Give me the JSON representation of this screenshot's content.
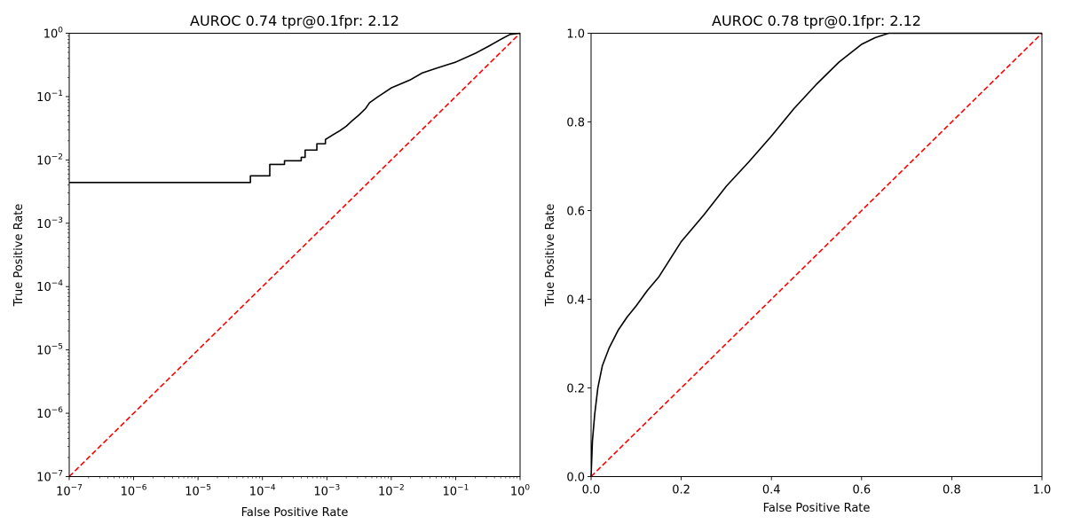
{
  "chart_data": [
    {
      "type": "line",
      "title": "AUROC 0.74 tpr@0.1fpr: 2.12",
      "xlabel": "False Positive Rate",
      "ylabel": "True Positive Rate",
      "xscale": "log",
      "yscale": "log",
      "xlim": [
        1e-07,
        1
      ],
      "ylim": [
        1e-07,
        1
      ],
      "grid": false,
      "legend": "none",
      "x_ticks": [
        {
          "base": "10",
          "exp": "−7"
        },
        {
          "base": "10",
          "exp": "−6"
        },
        {
          "base": "10",
          "exp": "−5"
        },
        {
          "base": "10",
          "exp": "−4"
        },
        {
          "base": "10",
          "exp": "−3"
        },
        {
          "base": "10",
          "exp": "−2"
        },
        {
          "base": "10",
          "exp": "−1"
        },
        {
          "base": "10",
          "exp": "0"
        }
      ],
      "y_ticks": [
        {
          "base": "10",
          "exp": "−7"
        },
        {
          "base": "10",
          "exp": "−6"
        },
        {
          "base": "10",
          "exp": "−5"
        },
        {
          "base": "10",
          "exp": "−4"
        },
        {
          "base": "10",
          "exp": "−3"
        },
        {
          "base": "10",
          "exp": "−2"
        },
        {
          "base": "10",
          "exp": "−1"
        },
        {
          "base": "10",
          "exp": "0"
        }
      ],
      "series": [
        {
          "style": "solid",
          "color": "#000000",
          "x": [
            1e-07,
            6.5e-05,
            6.5e-05,
            0.00013,
            0.00013,
            0.00022,
            0.00022,
            0.0004,
            0.0004,
            0.00046,
            0.00046,
            0.0007,
            0.0007,
            0.00095,
            0.00095,
            0.00125,
            0.0016,
            0.002,
            0.0025,
            0.0032,
            0.004,
            0.0046,
            0.006,
            0.01,
            0.02,
            0.03,
            0.05,
            0.1,
            0.2,
            0.35,
            0.5,
            0.7,
            1
          ],
          "y": [
            0.0044,
            0.0044,
            0.0056,
            0.0056,
            0.0085,
            0.0085,
            0.0097,
            0.0097,
            0.011,
            0.011,
            0.0143,
            0.0143,
            0.018,
            0.018,
            0.021,
            0.025,
            0.029,
            0.034,
            0.042,
            0.052,
            0.065,
            0.08,
            0.097,
            0.137,
            0.185,
            0.235,
            0.28,
            0.35,
            0.48,
            0.65,
            0.8,
            0.96,
            1
          ]
        },
        {
          "style": "dashed",
          "color": "#ff0000",
          "x": [
            1e-07,
            1
          ],
          "y": [
            1e-07,
            1
          ]
        }
      ]
    },
    {
      "type": "line",
      "title": "AUROC 0.78  tpr@0.1fpr: 2.12",
      "xlabel": "False Positive Rate",
      "ylabel": "True Positive Rate",
      "xscale": "linear",
      "yscale": "linear",
      "xlim": [
        0,
        1
      ],
      "ylim": [
        0,
        1
      ],
      "grid": false,
      "legend": "none",
      "x_ticks": [
        "0.0",
        "0.2",
        "0.4",
        "0.6",
        "0.8",
        "1.0"
      ],
      "y_ticks": [
        "0.0",
        "0.2",
        "0.4",
        "0.6",
        "0.8",
        "1.0"
      ],
      "series": [
        {
          "style": "solid",
          "color": "#000000",
          "x": [
            0,
            0.003,
            0.008,
            0.015,
            0.025,
            0.04,
            0.06,
            0.08,
            0.1,
            0.125,
            0.15,
            0.2,
            0.25,
            0.3,
            0.35,
            0.4,
            0.45,
            0.5,
            0.55,
            0.6,
            0.63,
            0.66,
            0.7,
            0.8,
            0.9,
            1.0
          ],
          "y": [
            0,
            0.08,
            0.14,
            0.2,
            0.25,
            0.29,
            0.33,
            0.36,
            0.385,
            0.42,
            0.45,
            0.53,
            0.59,
            0.655,
            0.71,
            0.768,
            0.83,
            0.885,
            0.935,
            0.975,
            0.99,
            1.0,
            1.0,
            1.0,
            1.0,
            1.0
          ]
        },
        {
          "style": "dashed",
          "color": "#ff0000",
          "x": [
            0,
            1
          ],
          "y": [
            0,
            1
          ]
        }
      ]
    }
  ]
}
